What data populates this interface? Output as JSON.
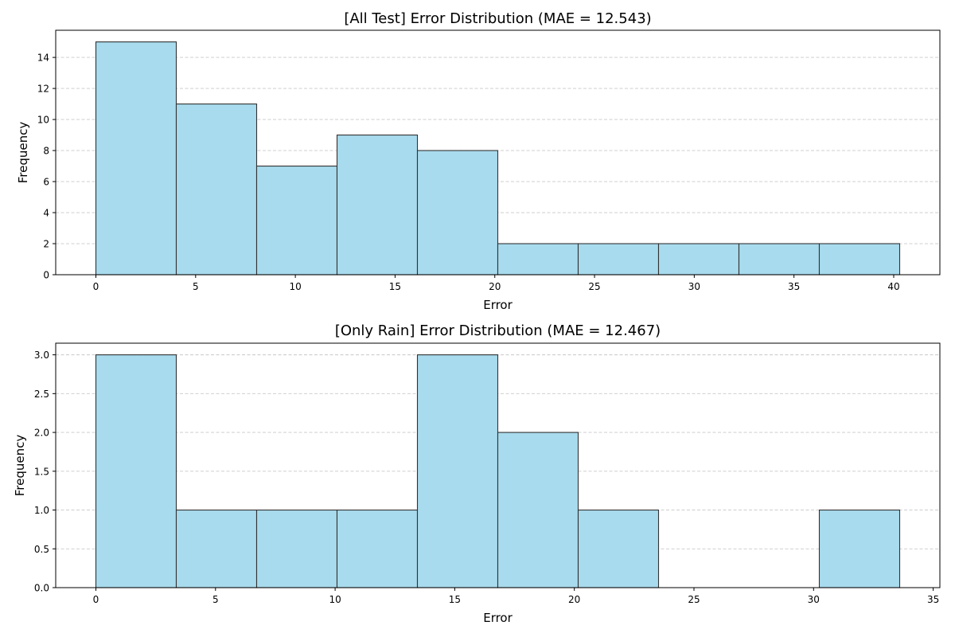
{
  "chart_data": [
    {
      "type": "bar",
      "title": "[All Test] Error Distribution (MAE = 12.543)",
      "xlabel": "Error",
      "ylabel": "Frequency",
      "bin_edges": [
        0,
        4.03,
        8.06,
        12.09,
        16.12,
        20.15,
        24.18,
        28.21,
        32.24,
        36.27,
        40.3
      ],
      "values": [
        15,
        11,
        7,
        9,
        8,
        2,
        2,
        2,
        2,
        2
      ],
      "xlim": [
        -2.015,
        42.315
      ],
      "ylim": [
        0,
        15.75
      ],
      "xticks": [
        0,
        5,
        10,
        15,
        20,
        25,
        30,
        35,
        40
      ],
      "yticks": [
        0,
        2,
        4,
        6,
        8,
        10,
        12,
        14
      ],
      "ytick_labels": [
        "0",
        "2",
        "4",
        "6",
        "8",
        "10",
        "12",
        "14"
      ],
      "grid": "y",
      "bar_color": "#a8dbed",
      "edge_color": "#333333",
      "grid_color": "#c8c8c8"
    },
    {
      "type": "bar",
      "title": "[Only Rain] Error Distribution (MAE = 12.467)",
      "xlabel": "Error",
      "ylabel": "Frequency",
      "bin_edges": [
        0,
        3.36,
        6.72,
        10.08,
        13.44,
        16.8,
        20.16,
        23.52,
        26.88,
        30.24,
        33.6
      ],
      "values": [
        3,
        1,
        1,
        1,
        3,
        2,
        1,
        0,
        0,
        1
      ],
      "xlim": [
        -1.68,
        35.28
      ],
      "ylim": [
        0,
        3.15
      ],
      "xticks": [
        0,
        5,
        10,
        15,
        20,
        25,
        30,
        35
      ],
      "yticks": [
        0,
        0.5,
        1.0,
        1.5,
        2.0,
        2.5,
        3.0
      ],
      "ytick_labels": [
        "0.0",
        "0.5",
        "1.0",
        "1.5",
        "2.0",
        "2.5",
        "3.0"
      ],
      "grid": "y",
      "bar_color": "#a8dbed",
      "edge_color": "#333333",
      "grid_color": "#c8c8c8"
    }
  ]
}
